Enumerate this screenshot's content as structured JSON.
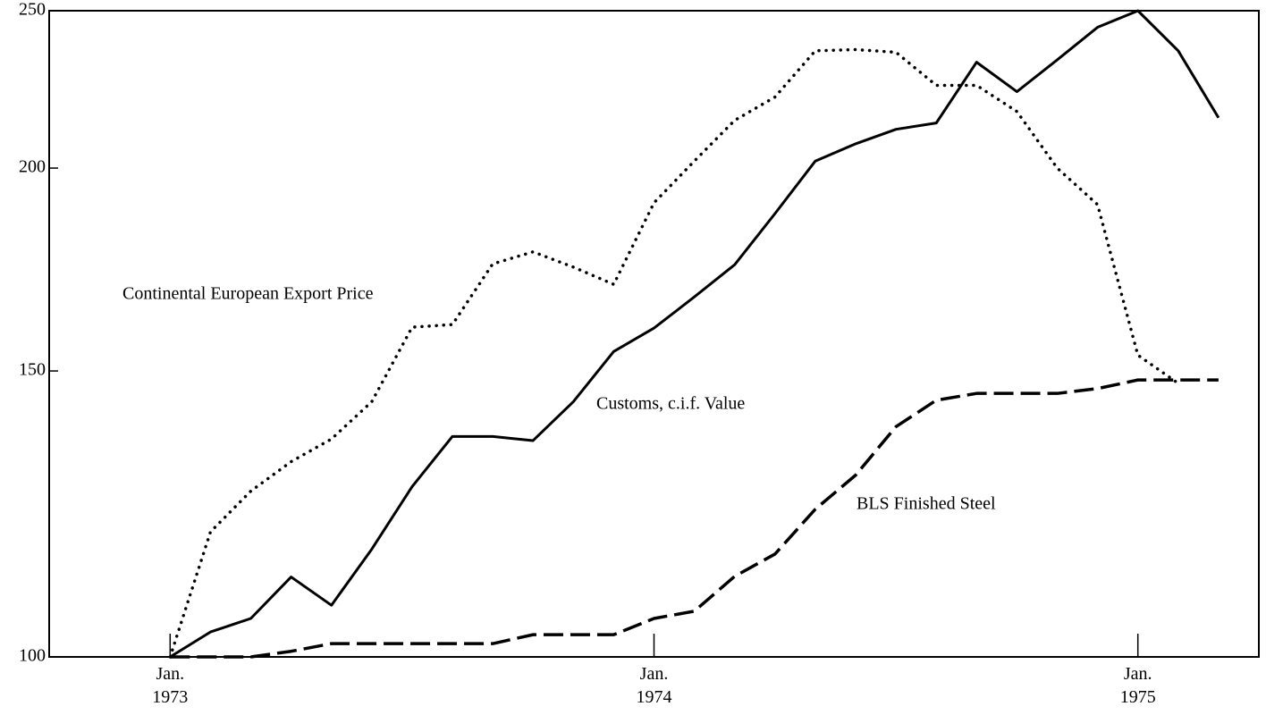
{
  "chart_data": {
    "type": "line",
    "ylog": true,
    "ylim": [
      100,
      250
    ],
    "yticks": [
      100,
      150,
      200,
      250
    ],
    "xlim": [
      "1972-10",
      "1975-04"
    ],
    "xticks": [
      {
        "value": "1973-01",
        "label": "Jan.\n1973"
      },
      {
        "value": "1974-01",
        "label": "Jan.\n1974"
      },
      {
        "value": "1975-01",
        "label": "Jan.\n1975"
      }
    ],
    "x": [
      "1973-01",
      "1973-02",
      "1973-03",
      "1973-04",
      "1973-05",
      "1973-06",
      "1973-07",
      "1973-08",
      "1973-09",
      "1973-10",
      "1973-11",
      "1973-12",
      "1974-01",
      "1974-02",
      "1974-03",
      "1974-04",
      "1974-05",
      "1974-06",
      "1974-07",
      "1974-08",
      "1974-09",
      "1974-10",
      "1974-11",
      "1974-12",
      "1975-01",
      "1975-02",
      "1975-03"
    ],
    "series": [
      {
        "name": "Continental European Export Price",
        "color": "#000000",
        "style": "dotted",
        "values": [
          100,
          119.4,
          126.5,
          131.9,
          136.2,
          143.6,
          159.6,
          160.2,
          174.6,
          177.6,
          173.8,
          169.6,
          190.4,
          202,
          214,
          221.2,
          236.2,
          236.6,
          235.7,
          224.9,
          224.9,
          216.7,
          200,
          189.9,
          153.4,
          147.4,
          null
        ]
      },
      {
        "name": "Customs, c.i.f. Value",
        "color": "#000000",
        "style": "solid",
        "values": [
          100,
          103.6,
          105.6,
          112,
          107.6,
          116.5,
          127.3,
          136.7,
          136.7,
          135.9,
          143.6,
          154.2,
          159.4,
          166.6,
          174.4,
          187.5,
          202,
          207,
          211.3,
          213.2,
          232.4,
          222.9,
          233.2,
          244.2,
          250,
          236.2,
          214.8
        ]
      },
      {
        "name": "BLS Finished Steel",
        "color": "#000000",
        "style": "dashed",
        "values": [
          100,
          100,
          100,
          100.8,
          101.9,
          101.9,
          101.9,
          101.9,
          101.9,
          103.2,
          103.2,
          103.2,
          105.6,
          106.7,
          112.1,
          115.7,
          123.3,
          129.4,
          138.6,
          143.9,
          145.3,
          145.3,
          145.3,
          146.3,
          148.1,
          148.1,
          148.1
        ]
      }
    ]
  }
}
